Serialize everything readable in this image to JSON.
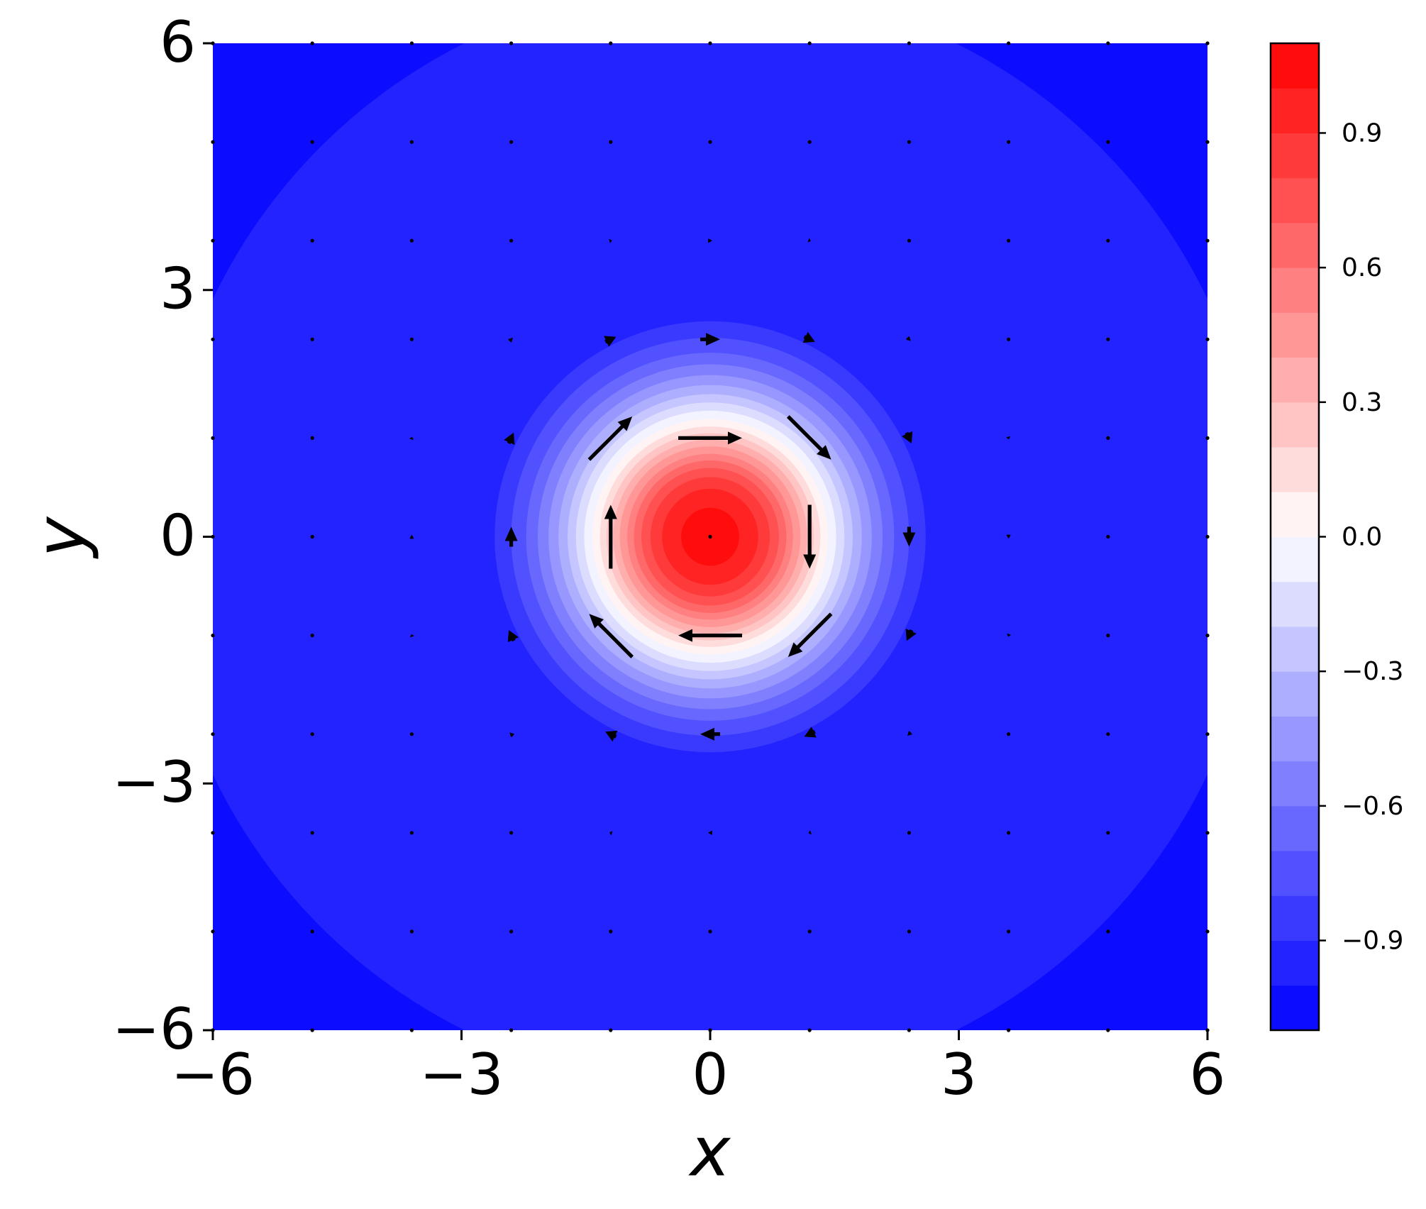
{
  "chart_data": {
    "type": "contour",
    "xlabel": "x",
    "ylabel": "y",
    "xlim": [
      -6,
      6
    ],
    "ylim": [
      -6,
      6
    ],
    "xticks": [
      {
        "value": -6,
        "label": "−6"
      },
      {
        "value": -3,
        "label": "−3"
      },
      0,
      3,
      6
    ],
    "yticks": [
      {
        "value": -6,
        "label": "−6"
      },
      {
        "value": -3,
        "label": "−3"
      },
      0,
      3,
      6
    ],
    "cmap": "bwr",
    "contour": {
      "levels": [
        -1.0,
        -0.9,
        -0.8,
        -0.7,
        -0.6,
        -0.5,
        -0.4,
        -0.3,
        -0.2,
        -0.1,
        0.0,
        0.1,
        0.2,
        0.3,
        0.4,
        0.5,
        0.6,
        0.7,
        0.8,
        0.9,
        1.0
      ],
      "radii": [
        6.65,
        2.6,
        2.4,
        2.22,
        2.08,
        1.95,
        1.83,
        1.72,
        1.62,
        1.52,
        1.42,
        1.33,
        1.25,
        1.17,
        1.09,
        1.0,
        0.92,
        0.83,
        0.72,
        0.58,
        0.35
      ]
    },
    "colorbar": {
      "lim": [
        -1.1,
        1.1
      ],
      "ticks": [
        {
          "value": -0.9,
          "label": "−0.9"
        },
        {
          "value": -0.6,
          "label": "−0.6"
        },
        {
          "value": -0.3,
          "label": "−0.3"
        },
        {
          "value": 0.0,
          "label": "0.0"
        },
        0.3,
        0.6,
        0.9
      ]
    },
    "quiver": {
      "color": "#000000",
      "x": [
        -6,
        -4.8,
        -3.6,
        -2.4,
        -1.2,
        0,
        1.2,
        2.4,
        3.6,
        4.8,
        6
      ],
      "y": [
        -6,
        -4.8,
        -3.6,
        -2.4,
        -1.2,
        0,
        1.2,
        2.4,
        3.6,
        4.8,
        6
      ],
      "u": [
        [
          0,
          0,
          0,
          0,
          0,
          0,
          0,
          0,
          0,
          0,
          0
        ],
        [
          0,
          0,
          0,
          0,
          0,
          0,
          0,
          0,
          0,
          0,
          0
        ],
        [
          0,
          0,
          0,
          0,
          -0.03,
          -0.05,
          -0.03,
          0,
          0,
          0,
          0
        ],
        [
          0,
          0,
          0,
          -0.04,
          -0.13,
          -0.24,
          -0.13,
          -0.04,
          0,
          0,
          0
        ],
        [
          0,
          0,
          -0.01,
          -0.06,
          -0.52,
          -0.77,
          -0.52,
          -0.06,
          -0.01,
          0,
          0
        ],
        [
          0,
          0,
          0,
          0,
          0,
          0,
          0,
          0,
          0,
          0,
          0
        ],
        [
          0,
          0,
          0.01,
          0.06,
          0.52,
          0.77,
          0.52,
          0.06,
          0.01,
          0,
          0
        ],
        [
          0,
          0,
          0,
          0.04,
          0.13,
          0.24,
          0.13,
          0.04,
          0,
          0,
          0
        ],
        [
          0,
          0,
          0,
          0,
          0.03,
          0.05,
          0.03,
          0,
          0,
          0,
          0
        ],
        [
          0,
          0,
          0,
          0,
          0,
          0,
          0,
          0,
          0,
          0,
          0
        ],
        [
          0,
          0,
          0,
          0,
          0,
          0,
          0,
          0,
          0,
          0,
          0
        ]
      ],
      "v": [
        [
          0,
          0,
          0,
          0,
          0,
          0,
          0,
          0,
          0,
          0,
          0
        ],
        [
          0,
          0,
          0,
          0,
          0,
          0,
          0,
          0,
          0,
          0,
          0
        ],
        [
          0,
          0,
          0,
          0,
          0.01,
          0,
          -0.01,
          0,
          0,
          0,
          0
        ],
        [
          0,
          0,
          0,
          0.04,
          0.06,
          0,
          -0.06,
          -0.04,
          0,
          0,
          0
        ],
        [
          0,
          0,
          0.03,
          0.13,
          0.52,
          0,
          -0.52,
          -0.13,
          -0.03,
          0,
          0
        ],
        [
          0,
          0,
          0.05,
          0.24,
          0.77,
          0,
          -0.77,
          -0.24,
          -0.05,
          0,
          0
        ],
        [
          0,
          0,
          0.03,
          0.13,
          0.52,
          0,
          -0.52,
          -0.13,
          -0.03,
          0,
          0
        ],
        [
          0,
          0,
          0,
          0.04,
          0.06,
          0,
          -0.06,
          -0.04,
          0,
          0,
          0
        ],
        [
          0,
          0,
          0,
          0,
          0.01,
          0,
          -0.01,
          0,
          0,
          0,
          0
        ],
        [
          0,
          0,
          0,
          0,
          0,
          0,
          0,
          0,
          0,
          0,
          0
        ],
        [
          0,
          0,
          0,
          0,
          0,
          0,
          0,
          0,
          0,
          0,
          0
        ]
      ]
    }
  }
}
